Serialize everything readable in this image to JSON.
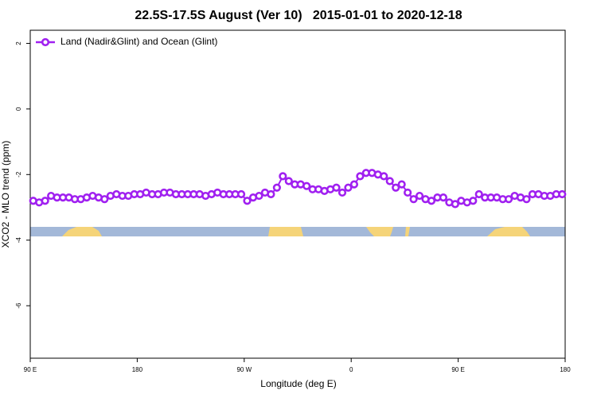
{
  "chart_data": {
    "type": "line",
    "title": "22.5S-17.5S August (Ver 10)   2015-01-01 to 2020-12-18",
    "x_label": "Longitude (deg E)",
    "y_label": "XCO2 - MLO trend (ppm)",
    "legend": "top-left",
    "xlim": [
      90,
      540
    ],
    "ylim": [
      -7.6,
      2.4
    ],
    "xticks": [
      {
        "value": 90,
        "label": "90 E"
      },
      180,
      {
        "value": 270,
        "label": "90 W"
      },
      {
        "value": 360,
        "label": "0"
      },
      {
        "value": 450,
        "label": "90 E"
      },
      {
        "value": 540,
        "label": "180"
      }
    ],
    "yticks": [
      -6,
      -4,
      -2,
      0,
      2
    ],
    "x": [
      92.5,
      97.5,
      102.5,
      107.5,
      112.5,
      117.5,
      122.5,
      127.5,
      132.5,
      137.5,
      142.5,
      147.5,
      152.5,
      157.5,
      162.5,
      167.5,
      172.5,
      177.5,
      182.5,
      187.5,
      192.5,
      197.5,
      202.5,
      207.5,
      212.5,
      217.5,
      222.5,
      227.5,
      232.5,
      237.5,
      242.5,
      247.5,
      252.5,
      257.5,
      262.5,
      267.5,
      272.5,
      277.5,
      282.5,
      287.5,
      292.5,
      297.5,
      302.5,
      307.5,
      312.5,
      317.5,
      322.5,
      327.5,
      332.5,
      337.5,
      342.5,
      347.5,
      352.5,
      357.5,
      362.5,
      367.5,
      372.5,
      377.5,
      382.5,
      387.5,
      392.5,
      397.5,
      402.5,
      407.5,
      412.5,
      417.5,
      422.5,
      427.5,
      432.5,
      437.5,
      442.5,
      447.5,
      452.5,
      457.5,
      462.5,
      467.5,
      472.5,
      477.5,
      482.5,
      487.5,
      492.5,
      497.5,
      502.5,
      507.5,
      512.5,
      517.5,
      522.5,
      527.5,
      532.5,
      537.5
    ],
    "series": [
      {
        "name": "Land (Nadir&Glint) and Ocean (Glint)",
        "color": "#a020f0",
        "values": [
          -2.8,
          -2.85,
          -2.8,
          -2.65,
          -2.7,
          -2.7,
          -2.7,
          -2.75,
          -2.75,
          -2.7,
          -2.65,
          -2.7,
          -2.75,
          -2.65,
          -2.6,
          -2.65,
          -2.65,
          -2.6,
          -2.6,
          -2.55,
          -2.6,
          -2.6,
          -2.55,
          -2.55,
          -2.6,
          -2.6,
          -2.6,
          -2.6,
          -2.6,
          -2.65,
          -2.6,
          -2.55,
          -2.6,
          -2.6,
          -2.6,
          -2.6,
          -2.8,
          -2.7,
          -2.65,
          -2.55,
          -2.6,
          -2.4,
          -2.05,
          -2.2,
          -2.3,
          -2.3,
          -2.35,
          -2.45,
          -2.45,
          -2.5,
          -2.45,
          -2.4,
          -2.55,
          -2.4,
          -2.3,
          -2.05,
          -1.95,
          -1.95,
          -2.0,
          -2.05,
          -2.2,
          -2.4,
          -2.3,
          -2.55,
          -2.75,
          -2.65,
          -2.75,
          -2.8,
          -2.7,
          -2.7,
          -2.85,
          -2.9,
          -2.8,
          -2.85,
          -2.8,
          -2.6,
          -2.7,
          -2.7,
          -2.7,
          -2.75,
          -2.75,
          -2.65,
          -2.7,
          -2.75,
          -2.6,
          -2.6,
          -2.65,
          -2.65,
          -2.6,
          -2.6
        ]
      }
    ]
  }
}
